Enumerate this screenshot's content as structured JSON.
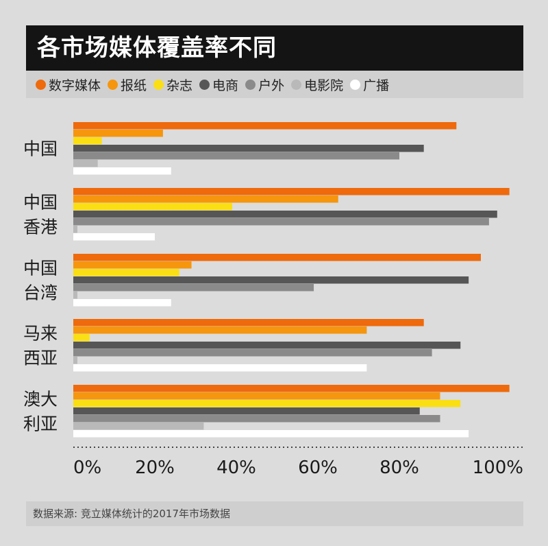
{
  "title": "各市场媒体覆盖率不同",
  "source": "数据来源: 竞立媒体统计的2017年市场数据",
  "colors": {
    "数字媒体": "#ee6a0c",
    "报纸": "#f5960e",
    "杂志": "#fadf14",
    "电商": "#565656",
    "户外": "#8a8a8a",
    "电影院": "#b9b9b9",
    "广播": "#ffffff"
  },
  "chart_data": {
    "type": "bar",
    "orientation": "horizontal",
    "categories": [
      [
        "中国"
      ],
      [
        "中国",
        "香港"
      ],
      [
        "中国",
        "台湾"
      ],
      [
        "马来",
        "西亚"
      ],
      [
        "澳大",
        "利亚"
      ]
    ],
    "series": [
      {
        "name": "数字媒体",
        "values": [
          94,
          107,
          100,
          86,
          107
        ]
      },
      {
        "name": "报纸",
        "values": [
          22,
          65,
          29,
          72,
          90
        ]
      },
      {
        "name": "杂志",
        "values": [
          7,
          39,
          26,
          4,
          95
        ]
      },
      {
        "name": "电商",
        "values": [
          86,
          104,
          97,
          95,
          85
        ]
      },
      {
        "name": "户外",
        "values": [
          80,
          102,
          59,
          88,
          90
        ]
      },
      {
        "name": "电影院",
        "values": [
          6,
          1,
          1,
          1,
          32
        ]
      },
      {
        "name": "广播",
        "values": [
          24,
          20,
          24,
          72,
          97
        ]
      }
    ],
    "xlim": [
      0,
      110
    ],
    "xticks": [
      "0%",
      "20%",
      "40%",
      "60%",
      "80%",
      "100%"
    ],
    "xtick_values": [
      0,
      20,
      40,
      60,
      80,
      100
    ]
  }
}
